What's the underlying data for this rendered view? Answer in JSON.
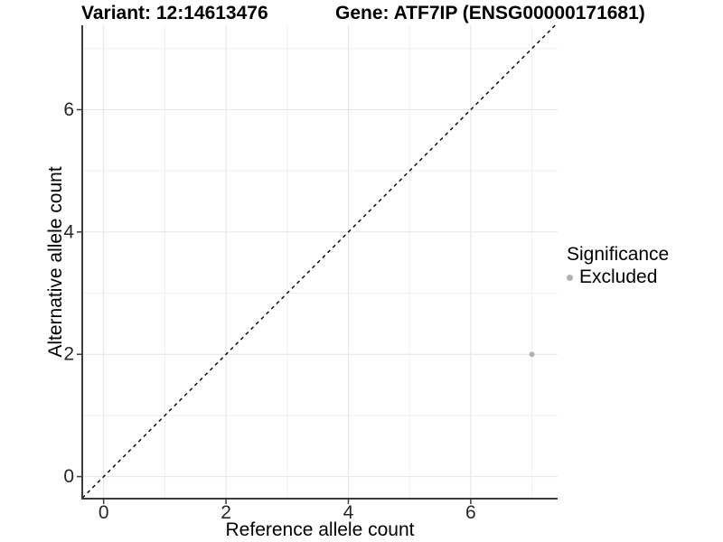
{
  "titles": {
    "variant": "Variant: 12:14613476",
    "gene": "Gene: ATF7IP (ENSG00000171681)"
  },
  "chart_data": {
    "type": "scatter",
    "title_left": "Variant: 12:14613476",
    "title_right": "Gene: ATF7IP (ENSG00000171681)",
    "xlabel": "Reference allele count",
    "ylabel": "Alternative allele count",
    "xlim": [
      -0.35,
      7.42
    ],
    "ylim": [
      -0.36,
      7.38
    ],
    "x_ticks": [
      0,
      2,
      4,
      6
    ],
    "y_ticks": [
      0,
      2,
      4,
      6
    ],
    "x_minor_gridlines": [
      1,
      3,
      5,
      7
    ],
    "y_minor_gridlines": [
      1,
      3,
      5,
      7
    ],
    "grid": true,
    "identity_line": {
      "style": "dashed",
      "slope": 1,
      "intercept": 0,
      "color": "#000000"
    },
    "series": [
      {
        "name": "Excluded",
        "color": "#b1b1b1",
        "points": [
          {
            "x": 7,
            "y": 2
          }
        ]
      }
    ],
    "legend": {
      "title": "Significance",
      "position": "right",
      "entries": [
        {
          "label": "Excluded",
          "color": "#b1b1b1"
        }
      ]
    }
  },
  "colors": {
    "background": "#ffffff",
    "grid_major": "#e4e4e4",
    "grid_minor": "#f1f1f1",
    "axis_line": "#3c3c3c",
    "tick_label": "#262626",
    "point": "#b1b1b1"
  }
}
